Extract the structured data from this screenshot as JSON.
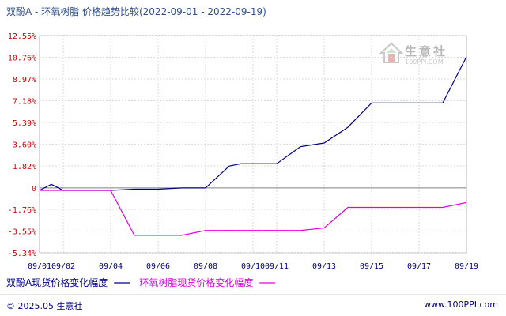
{
  "header": {
    "title": "双酚A - 环氧树脂 价格趋势比较(2022-09-01 - 2022-09-19)"
  },
  "watermark": {
    "name": "生意社",
    "url": "100PPI.COM"
  },
  "footer": {
    "copyright": "© 2025.05 生意社",
    "site": "www.100PPI.com"
  },
  "chart_data": {
    "type": "line",
    "title": "双酚A - 环氧树脂 价格趋势比较(2022-09-01 - 2022-09-19)",
    "x_tick_labels": [
      "09/01",
      "09/02",
      "09/04",
      "09/06",
      "09/08",
      "09/10",
      "09/11",
      "09/13",
      "09/15",
      "09/17",
      "09/19"
    ],
    "y_tick_labels": [
      "12.55%",
      "10.76%",
      "8.97%",
      "7.18%",
      "5.39%",
      "3.60%",
      "1.82%",
      "0",
      "-1.76%",
      "-3.55%",
      "-5.34%"
    ],
    "y_tick_values": [
      12.55,
      10.76,
      8.97,
      7.18,
      5.39,
      3.6,
      1.82,
      0,
      -1.76,
      -3.55,
      -5.34
    ],
    "ylim": [
      -5.34,
      12.55
    ],
    "grid": true,
    "legend_position": "bottom-left",
    "series": [
      {
        "name": "双酚A现货价格变化幅度",
        "color": "#00008b",
        "points": [
          [
            "09/01",
            -0.2
          ],
          [
            "09/01",
            0.3
          ],
          [
            "09/02",
            -0.2
          ],
          [
            "09/03",
            -0.2
          ],
          [
            "09/04",
            -0.2
          ],
          [
            "09/05",
            -0.1
          ],
          [
            "09/06",
            -0.1
          ],
          [
            "09/07",
            0.0
          ],
          [
            "09/08",
            0.0
          ],
          [
            "09/09",
            1.8
          ],
          [
            "09/09",
            2.0
          ],
          [
            "09/10",
            2.0
          ],
          [
            "09/11",
            2.0
          ],
          [
            "09/12",
            3.4
          ],
          [
            "09/13",
            3.7
          ],
          [
            "09/14",
            5.0
          ],
          [
            "09/15",
            7.0
          ],
          [
            "09/16",
            7.0
          ],
          [
            "09/17",
            7.0
          ],
          [
            "09/18",
            7.0
          ],
          [
            "09/19",
            10.8
          ]
        ]
      },
      {
        "name": "环氧树脂现货价格变化幅度",
        "color": "#e000e0",
        "points": [
          [
            "09/01",
            -0.2
          ],
          [
            "09/02",
            -0.2
          ],
          [
            "09/03",
            -0.2
          ],
          [
            "09/04",
            -0.2
          ],
          [
            "09/05",
            -3.9
          ],
          [
            "09/06",
            -3.9
          ],
          [
            "09/07",
            -3.9
          ],
          [
            "09/08",
            -3.5
          ],
          [
            "09/09",
            -3.5
          ],
          [
            "09/10",
            -3.5
          ],
          [
            "09/11",
            -3.5
          ],
          [
            "09/12",
            -3.5
          ],
          [
            "09/13",
            -3.3
          ],
          [
            "09/14",
            -1.6
          ],
          [
            "09/15",
            -1.6
          ],
          [
            "09/16",
            -1.6
          ],
          [
            "09/17",
            -1.6
          ],
          [
            "09/18",
            -1.6
          ],
          [
            "09/19",
            -1.2
          ]
        ]
      }
    ]
  }
}
